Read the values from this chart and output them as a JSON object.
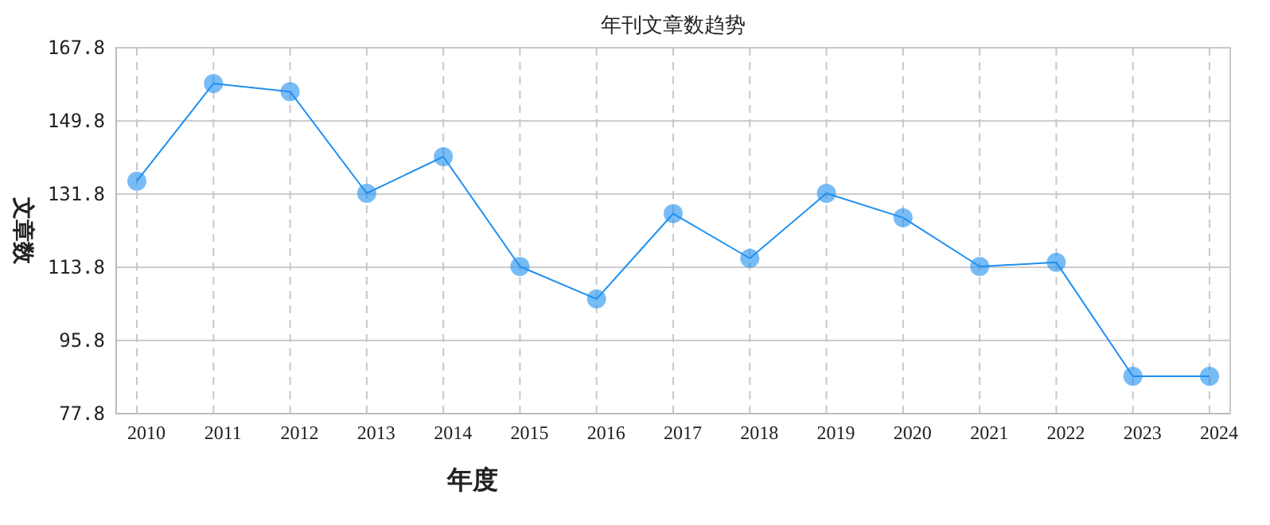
{
  "chart_data": {
    "type": "line",
    "title": "年刊文章数趋势",
    "xlabel": "年度",
    "ylabel": "文章数",
    "categories": [
      "2010",
      "2011",
      "2012",
      "2013",
      "2014",
      "2015",
      "2016",
      "2017",
      "2018",
      "2019",
      "2020",
      "2021",
      "2022",
      "2023",
      "2024"
    ],
    "series": [
      {
        "color": "#1e8ff0",
        "values": [
          135,
          159,
          157,
          132,
          141,
          114,
          106,
          127,
          116,
          132,
          126,
          114,
          115,
          87,
          87
        ]
      }
    ],
    "ylim": [
      77.8,
      167.8
    ],
    "yticks": [
      77.8,
      95.8,
      113.8,
      131.8,
      149.8,
      167.8
    ],
    "grid": true,
    "marker": "circle",
    "line_style": "solid"
  }
}
